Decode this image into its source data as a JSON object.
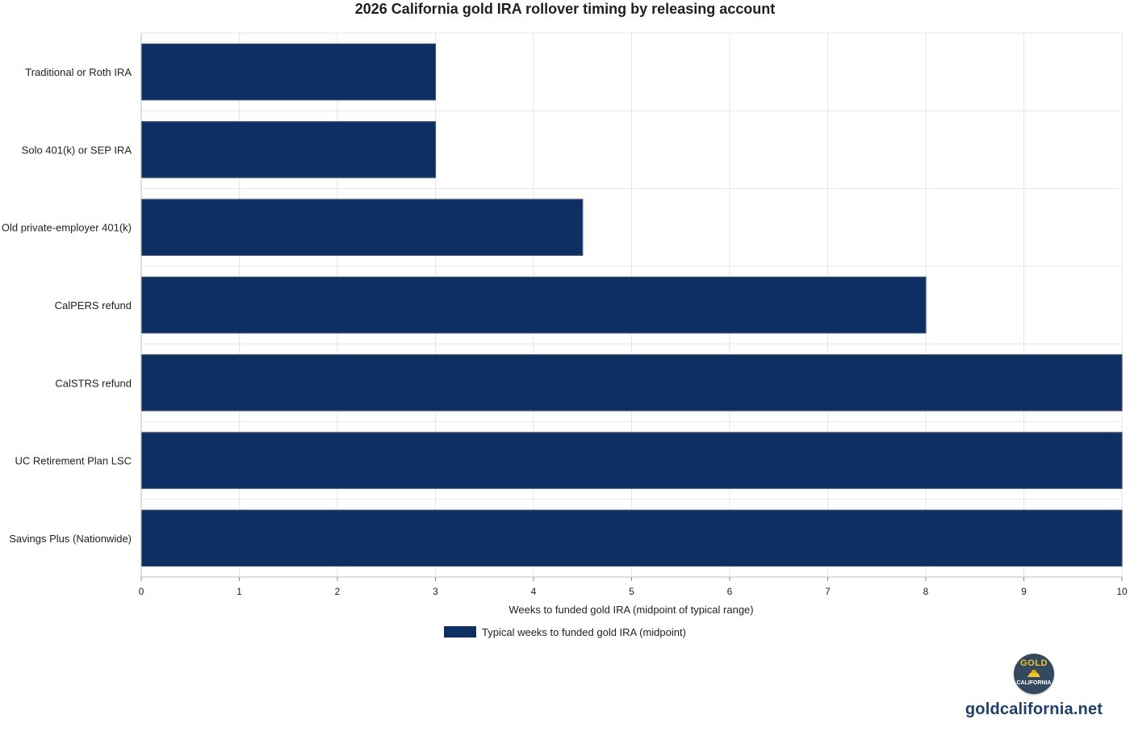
{
  "chart_data": {
    "type": "bar",
    "orientation": "horizontal",
    "title": "2026 California gold IRA rollover timing by releasing account",
    "xlabel": "Weeks to funded gold IRA (midpoint of typical range)",
    "ylabel": "",
    "xlim": [
      0,
      10
    ],
    "ticks": [
      "0",
      "1",
      "2",
      "3",
      "4",
      "5",
      "6",
      "7",
      "8",
      "9",
      "10"
    ],
    "categories": [
      "Traditional or Roth IRA",
      "Solo 401(k) or SEP IRA",
      "Old private-employer 401(k)",
      "CalPERS refund",
      "CalSTRS refund",
      "UC Retirement Plan LSC",
      "Savings Plus (Nationwide)"
    ],
    "series": [
      {
        "name": "Typical weeks to funded gold IRA (midpoint)",
        "values": [
          3,
          3,
          4.5,
          8,
          10,
          10,
          10
        ],
        "color": "#0d2f62"
      }
    ],
    "grid": true,
    "legend_position": "bottom-center"
  },
  "branding": {
    "badge_top": "GOLD",
    "badge_bottom": "CALIFORNIA",
    "url": "goldcalifornia.net",
    "badge_color": "#34495e",
    "gold_color": "#f1c232"
  }
}
